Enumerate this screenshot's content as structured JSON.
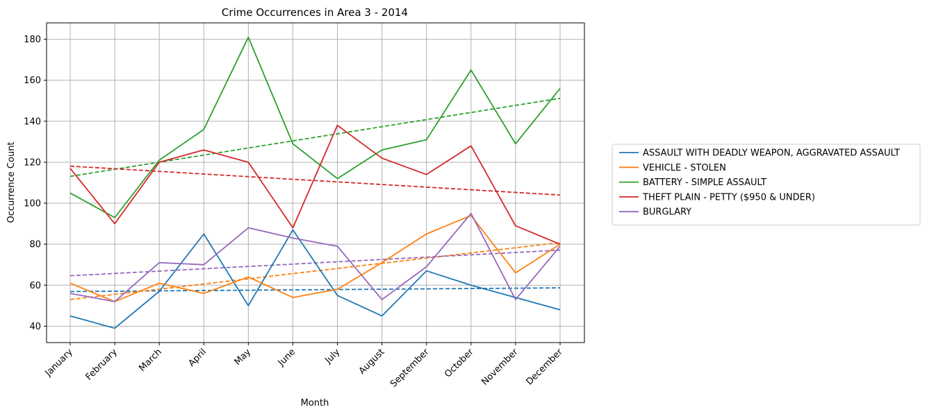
{
  "chart_data": {
    "type": "line",
    "title": "Crime Occurrences in Area 3 - 2014",
    "xlabel": "Month",
    "ylabel": "Occurrence Count",
    "categories": [
      "January",
      "February",
      "March",
      "April",
      "May",
      "June",
      "July",
      "August",
      "September",
      "October",
      "November",
      "December"
    ],
    "ylim": [
      32,
      188
    ],
    "yticks": [
      40,
      60,
      80,
      100,
      120,
      140,
      160,
      180
    ],
    "grid": true,
    "legend_position": "right",
    "series": [
      {
        "name": "ASSAULT WITH DEADLY WEAPON, AGGRAVATED ASSAULT",
        "color": "#1f77b4",
        "values": [
          45,
          39,
          57,
          85,
          50,
          87,
          55,
          45,
          67,
          60,
          54,
          48
        ],
        "trend": [
          56.9,
          58.7
        ]
      },
      {
        "name": "VEHICLE - STOLEN",
        "color": "#ff7f0e",
        "values": [
          61,
          52,
          61,
          56,
          64,
          54,
          58,
          71,
          85,
          94,
          66,
          80
        ],
        "trend": [
          53,
          80.8
        ]
      },
      {
        "name": "BATTERY - SIMPLE ASSAULT",
        "color": "#2ca02c",
        "values": [
          105,
          93,
          121,
          136,
          181,
          129,
          112,
          126,
          131,
          165,
          129,
          156
        ],
        "trend": [
          113.1,
          151.2
        ]
      },
      {
        "name": "THEFT PLAIN - PETTY ($950 & UNDER)",
        "color": "#d62728",
        "values": [
          117,
          90,
          120,
          126,
          120,
          88,
          138,
          122,
          114,
          128,
          89,
          80
        ],
        "trend": [
          118.1,
          104
        ]
      },
      {
        "name": "BURGLARY",
        "color": "#9467bd",
        "values": [
          56,
          52,
          71,
          70,
          88,
          83,
          79,
          53,
          69,
          95,
          53,
          79
        ],
        "trend": [
          64.6,
          77.1
        ]
      }
    ]
  }
}
